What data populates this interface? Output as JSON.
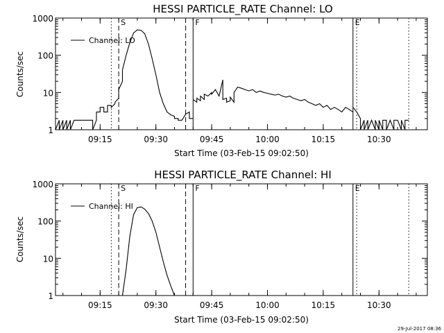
{
  "footer": {
    "timestamp": "29-Jul-2017 08:36"
  },
  "chart_data": [
    {
      "type": "line",
      "title": "HESSI PARTICLE_RATE Channel: LO",
      "xlabel": "Start Time (03-Feb-15 09:02:50)",
      "ylabel": "Counts/sec",
      "y_scale": "log",
      "xlim": [
        "09:03",
        "10:43"
      ],
      "ylim": [
        1,
        1000
      ],
      "x_ticks": [
        "09:15",
        "09:30",
        "09:45",
        "10:00",
        "10:15",
        "10:30"
      ],
      "y_ticks": [
        "1",
        "10",
        "100",
        "1000"
      ],
      "legend": {
        "entries": [
          "Channel: LO"
        ],
        "placement": "top-left"
      },
      "markers": [
        {
          "label": "S",
          "time": "09:20",
          "style": "dashed"
        },
        {
          "label": "F",
          "time": "09:40",
          "style": "solid"
        },
        {
          "label": "E",
          "time": "10:23",
          "style": "solid"
        }
      ],
      "extra_lines": [
        {
          "time": "09:18",
          "style": "dotted"
        },
        {
          "time": "09:38",
          "style": "dashed"
        },
        {
          "time": "10:24",
          "style": "dotted"
        },
        {
          "time": "10:38",
          "style": "dotted"
        }
      ],
      "series": [
        {
          "name": "Channel: LO",
          "segments": [
            {
              "x": [
                "09:03",
                "09:04",
                "09:04",
                "09:05",
                "09:05",
                "09:06",
                "09:06",
                "09:07",
                "09:07",
                "09:08",
                "09:08",
                "09:09",
                "09:09",
                "09:10",
                "09:10",
                "09:11",
                "09:11",
                "09:12",
                "09:12",
                "09:13",
                "09:13",
                "09:14",
                "09:14",
                "09:14",
                "09:15",
                "09:15",
                "09:16",
                "09:16",
                "09:17",
                "09:17",
                "09:18",
                "09:18",
                "09:19",
                "09:19",
                "09:20",
                "09:20",
                "09:21",
                "09:21",
                "09:22",
                "09:23",
                "09:24",
                "09:25",
                "09:26",
                "09:27",
                "09:28",
                "09:29",
                "09:30",
                "09:31",
                "09:32",
                "09:33",
                "09:34",
                "09:35",
                "09:35",
                "09:36",
                "09:36",
                "09:37",
                "09:37",
                "09:38",
                "09:39",
                "09:39",
                "09:40"
              ],
              "y": [
                1.0,
                1.8,
                1.0,
                1.8,
                1.0,
                1.8,
                1.0,
                1.8,
                1.0,
                1.8,
                1.8,
                1.8,
                1.8,
                1.8,
                1.8,
                1.8,
                1.8,
                1.8,
                1.8,
                1.8,
                1.0,
                1.8,
                1.8,
                3.0,
                3.0,
                4.0,
                4.0,
                3.0,
                3.0,
                4.5,
                4.5,
                4.0,
                5.0,
                5.5,
                7.0,
                12,
                20,
                40,
                100,
                220,
                400,
                480,
                470,
                380,
                200,
                80,
                30,
                10,
                5.0,
                3.0,
                2.5,
                2.3,
                2.0,
                2.0,
                1.8,
                1.8,
                1.8,
                2.6,
                3.0,
                2.0,
                2.0
              ]
            },
            {
              "x": [
                "09:40",
                "09:41",
                "09:41",
                "09:42",
                "09:42",
                "09:43",
                "09:43",
                "09:44",
                "09:45",
                "09:45",
                "09:46",
                "09:47",
                "09:48",
                "09:48",
                "09:49",
                "09:49",
                "09:50",
                "09:50",
                "09:51",
                "09:51",
                "09:52",
                "09:53",
                "09:54",
                "09:55",
                "09:56",
                "09:57",
                "09:58",
                "09:59",
                "10:00",
                "10:01",
                "10:02",
                "10:03",
                "10:04",
                "10:05",
                "10:06",
                "10:07",
                "10:08",
                "10:09",
                "10:10",
                "10:11",
                "10:12",
                "10:13",
                "10:14",
                "10:15",
                "10:16",
                "10:17",
                "10:18",
                "10:19",
                "10:20",
                "10:21",
                "10:22",
                "10:23"
              ],
              "y": [
                6.5,
                5.5,
                7.0,
                6.0,
                8.0,
                6.5,
                9.0,
                8.0,
                10,
                9.0,
                12,
                8.0,
                22,
                6.5,
                7.0,
                5.5,
                6.0,
                7.5,
                5.5,
                10,
                14,
                13,
                12,
                11,
                12,
                10,
                11,
                10,
                9.5,
                9.0,
                8.5,
                9.0,
                8.0,
                7.5,
                8.0,
                7.0,
                6.5,
                6.0,
                6.5,
                5.5,
                5.0,
                4.5,
                5.0,
                4.0,
                4.5,
                3.5,
                4.0,
                3.5,
                3.0,
                4.0,
                3.5,
                3.0
              ]
            },
            {
              "x": [
                "10:23",
                "10:24",
                "10:25",
                "10:25",
                "10:26",
                "10:26",
                "10:27",
                "10:27",
                "10:28",
                "10:28",
                "10:29",
                "10:29",
                "10:30",
                "10:30",
                "10:31",
                "10:31",
                "10:32",
                "10:32",
                "10:33",
                "10:33",
                "10:34",
                "10:34",
                "10:35",
                "10:35",
                "10:36",
                "10:36",
                "10:37",
                "10:37",
                "10:38",
                "10:38"
              ],
              "y": [
                4.0,
                3.0,
                2.0,
                1.0,
                1.8,
                1.0,
                1.8,
                1.0,
                1.8,
                1.8,
                1.0,
                1.8,
                1.0,
                1.8,
                1.0,
                1.8,
                1.8,
                1.0,
                1.8,
                1.8,
                1.0,
                1.8,
                1.8,
                1.8,
                1.0,
                1.8,
                1.0,
                1.8,
                1.8,
                1.8
              ]
            }
          ]
        }
      ]
    },
    {
      "type": "line",
      "title": "HESSI PARTICLE_RATE Channel: HI",
      "xlabel": "Start Time (03-Feb-15 09:02:50)",
      "ylabel": "Counts/sec",
      "y_scale": "log",
      "xlim": [
        "09:03",
        "10:43"
      ],
      "ylim": [
        1,
        1000
      ],
      "x_ticks": [
        "09:15",
        "09:30",
        "09:45",
        "10:00",
        "10:15",
        "10:30"
      ],
      "y_ticks": [
        "1",
        "10",
        "100",
        "1000"
      ],
      "legend": {
        "entries": [
          "Channel: HI"
        ],
        "placement": "top-left"
      },
      "markers": [
        {
          "label": "S",
          "time": "09:20",
          "style": "dashed"
        },
        {
          "label": "F",
          "time": "09:40",
          "style": "solid"
        },
        {
          "label": "E",
          "time": "10:23",
          "style": "solid"
        }
      ],
      "extra_lines": [
        {
          "time": "09:18",
          "style": "dotted"
        },
        {
          "time": "09:38",
          "style": "dashed"
        },
        {
          "time": "10:24",
          "style": "dotted"
        },
        {
          "time": "10:38",
          "style": "dotted"
        }
      ],
      "series": [
        {
          "name": "Channel: HI",
          "segments": [
            {
              "x": [
                "09:21",
                "09:22",
                "09:23",
                "09:24",
                "09:25",
                "09:26",
                "09:27",
                "09:28",
                "09:29",
                "09:30",
                "09:31",
                "09:32",
                "09:33",
                "09:34",
                "09:35"
              ],
              "y": [
                1.0,
                5.0,
                40,
                150,
                230,
                240,
                210,
                160,
                100,
                50,
                20,
                8.0,
                3.5,
                1.8,
                1.0
              ]
            }
          ]
        }
      ]
    }
  ]
}
